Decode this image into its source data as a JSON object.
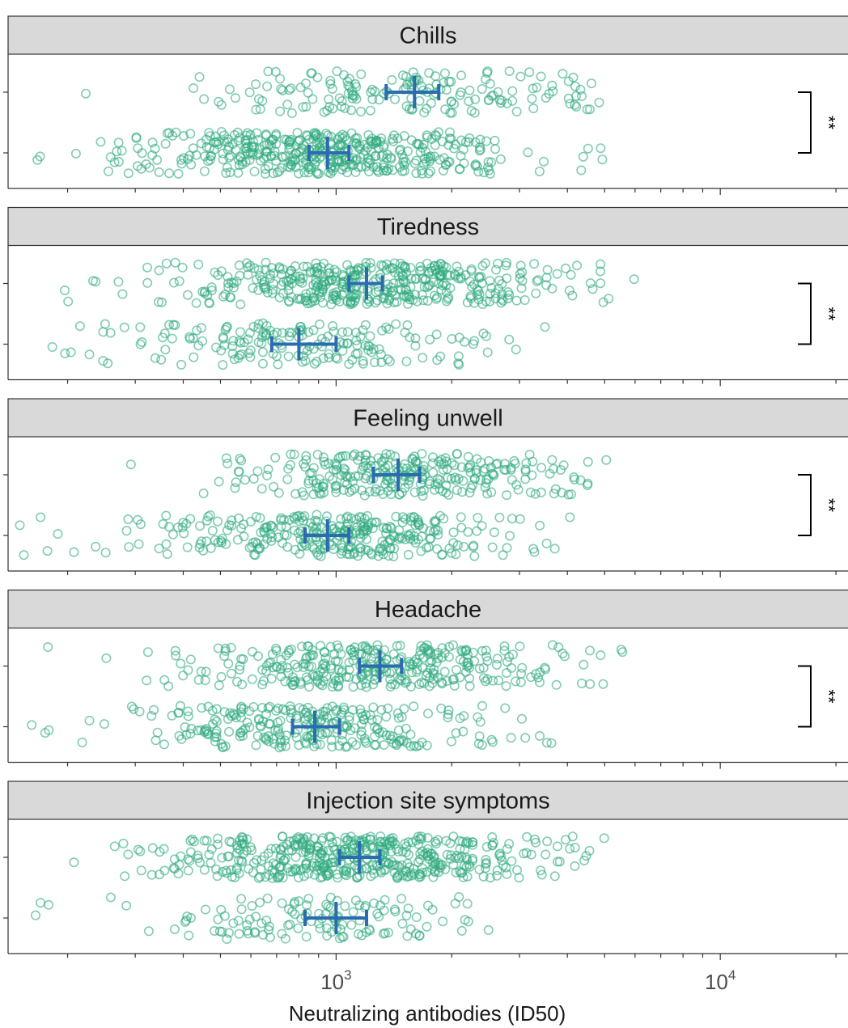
{
  "chart_data": {
    "type": "scatter",
    "facet_layout": "vertical",
    "xlabel": "Neutralizing antibodies (ID50)",
    "xscale": "log10",
    "xlim": [
      140,
      21500
    ],
    "tick_labels": [
      {
        "value": 1000,
        "base": "10",
        "exponent": "3"
      },
      {
        "value": 10000,
        "base": "10",
        "exponent": "4"
      }
    ],
    "grid": false,
    "colors": {
      "points": "#2eaa7e",
      "summary": "#2b6cb0",
      "significance": "#000000"
    },
    "panels": [
      {
        "title": "Chills",
        "groups": [
          {
            "center": 1600,
            "lower": 1350,
            "upper": 1850,
            "range": [
              185,
              4900
            ],
            "n": 170
          },
          {
            "center": 950,
            "lower": 850,
            "upper": 1080,
            "range": [
              155,
              5200
            ],
            "n": 430
          }
        ],
        "significance": "**"
      },
      {
        "title": "Tiredness",
        "groups": [
          {
            "center": 1200,
            "lower": 1080,
            "upper": 1320,
            "range": [
              175,
              6000
            ],
            "n": 420
          },
          {
            "center": 800,
            "lower": 680,
            "upper": 1000,
            "range": [
              145,
              3600
            ],
            "n": 180
          }
        ],
        "significance": "**"
      },
      {
        "title": "Feeling unwell",
        "groups": [
          {
            "center": 1450,
            "lower": 1250,
            "upper": 1650,
            "range": [
              220,
              5200
            ],
            "n": 280
          },
          {
            "center": 950,
            "lower": 830,
            "upper": 1080,
            "range": [
              150,
              5100
            ],
            "n": 320
          }
        ],
        "significance": "**"
      },
      {
        "title": "Headache",
        "groups": [
          {
            "center": 1300,
            "lower": 1150,
            "upper": 1480,
            "range": [
              165,
              6000
            ],
            "n": 330
          },
          {
            "center": 880,
            "lower": 770,
            "upper": 1020,
            "range": [
              160,
              4000
            ],
            "n": 270
          }
        ],
        "significance": "**"
      },
      {
        "title": "Injection site symptoms",
        "groups": [
          {
            "center": 1150,
            "lower": 1020,
            "upper": 1300,
            "range": [
              170,
              5800
            ],
            "n": 470
          },
          {
            "center": 1000,
            "lower": 830,
            "upper": 1200,
            "range": [
              160,
              3700
            ],
            "n": 130
          }
        ],
        "significance": ""
      }
    ]
  }
}
